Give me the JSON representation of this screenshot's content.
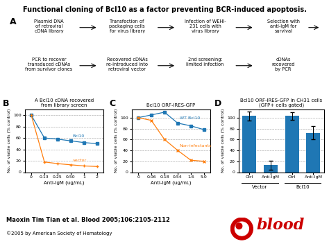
{
  "title": "Functional cloning of Bcl10 as a factor preventing BCR-induced apoptosis.",
  "annotations": [
    "Maoxin Tim Tian et al. Blood 2005;106:2105-2112",
    "©2005 by American Society of Hematology",
    "blood"
  ],
  "color": "#cc0000",
  "chart_data": [
    {
      "type": "flow",
      "label": "A",
      "annotations": [
        [
          "Plasmid DNA\nof retroviral\ncDNA library",
          "Transfection of\npackaging cells\nfor virus library",
          "Infection of WEHI-\n231 cells with\nvirus library",
          "Selection with\nanti-IgM for\nsurvival"
        ],
        [
          "PCR to recover\ntransduced cDNAs\nfrom survivor clones",
          "Recovered cDNAs\nre-introduced into\nretroviral vector",
          "2nd screening:\nlimited infection",
          "cDNAs\nrecovered\nby PCR"
        ]
      ]
    },
    {
      "type": "line",
      "label": "B",
      "title": "A Bcl10 cDNA recovered\nfrom library screen",
      "xlabel": "Anti-IgM (ug/mL)",
      "ylabel": "No. of viable cells (% control)",
      "categories": [
        "0",
        "0.13",
        "0.25",
        "0.50",
        "1",
        "2"
      ],
      "series": [
        {
          "name": "Bcl10",
          "marker": "square",
          "values": [
            100,
            60,
            58,
            55,
            52,
            50
          ]
        },
        {
          "name": "vector",
          "marker": "plus",
          "values": [
            100,
            18,
            15,
            13,
            11,
            10
          ]
        }
      ],
      "ylim": [
        0,
        110
      ],
      "yticks": [
        0,
        20,
        40,
        60,
        80,
        100
      ],
      "grid": "y"
    },
    {
      "type": "line",
      "label": "C",
      "title": "Bcl10 ORF-IRES-GFP",
      "xlabel": "Anti-IgM (ug/mL)",
      "ylabel": "No. of viable cells (% control)",
      "categories": [
        "0",
        "0.06",
        "0.18",
        "0.54",
        "1.6",
        "5.0"
      ],
      "series": [
        {
          "name": "WT Bcl10",
          "marker": "square",
          "values": [
            100,
            105,
            110,
            90,
            85,
            78
          ]
        },
        {
          "name": "Non-infectants",
          "marker": "x",
          "values": [
            100,
            95,
            60,
            40,
            22,
            20
          ]
        }
      ],
      "ylim": [
        0,
        115
      ],
      "yticks": [
        0,
        20,
        40,
        60,
        80,
        100
      ],
      "grid": "y"
    },
    {
      "type": "bar",
      "label": "D",
      "title": "Bcl10 ORF-IRES-GFP in CH31 cells\n(GFP+ cells gated)",
      "ylabel": "No. of viable cells (% control)",
      "categories": [
        "Ctrl",
        "Anti-IgM",
        "Ctrl",
        "Anti-IgM"
      ],
      "group_labels": [
        "Vector",
        "Bcl10"
      ],
      "values": [
        103,
        13,
        103,
        72
      ],
      "errors": [
        8,
        8,
        7,
        12
      ],
      "ylim": [
        0,
        115
      ],
      "yticks": [
        0,
        20,
        40,
        60,
        80,
        100
      ],
      "grid": "y"
    }
  ]
}
